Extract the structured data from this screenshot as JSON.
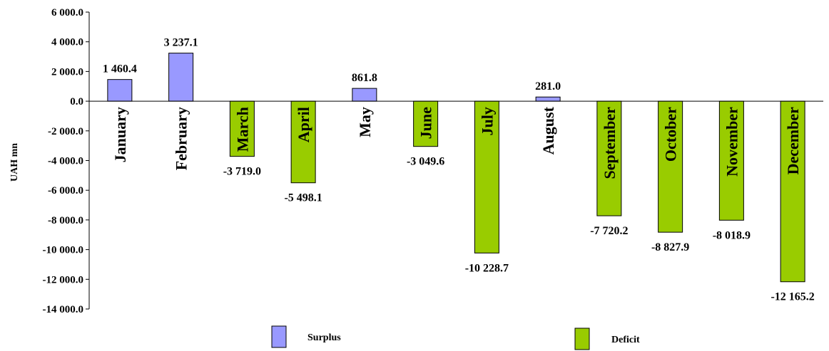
{
  "chart_data": {
    "type": "bar",
    "title": "",
    "xlabel": "",
    "ylabel": "UAH mn",
    "ylim": [
      -14000,
      6000
    ],
    "y_tick_step": 2000,
    "y_tick_labels": [
      "6 000.0",
      "4 000.0",
      "2 000.0",
      "0.0",
      "-2 000.0",
      "-4 000.0",
      "-6 000.0",
      "-8 000.0",
      "-10 000.0",
      "-12 000.0",
      "-14 000.0"
    ],
    "categories": [
      "January",
      "February",
      "March",
      "April",
      "May",
      "June",
      "July",
      "August",
      "September",
      "October",
      "November",
      "December"
    ],
    "values": [
      1460.4,
      3237.1,
      -3719.0,
      -5498.1,
      861.8,
      -3049.6,
      -10228.7,
      281.0,
      -7720.2,
      -8827.9,
      -8018.9,
      -12165.2
    ],
    "value_labels": [
      "1 460.4",
      "3 237.1",
      "-3 719.0",
      "-5 498.1",
      "861.8",
      "-3 049.6",
      "-10 228.7",
      "281.0",
      "-7 720.2",
      "-8 827.9",
      "-8 018.9",
      "-12 165.2"
    ],
    "grid": false,
    "legend": {
      "position": "bottom",
      "items": [
        {
          "name": "Surplus",
          "color": "#9999ff"
        },
        {
          "name": "Deficit",
          "color": "#99cc00"
        }
      ]
    },
    "colors": {
      "surplus": "#9999ff",
      "deficit": "#99cc00",
      "axis": "#000000"
    }
  }
}
